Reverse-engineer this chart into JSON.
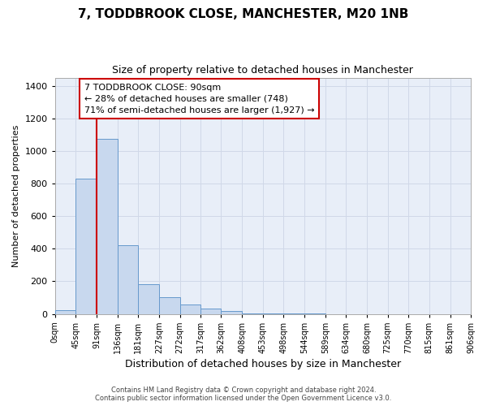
{
  "title_line1": "7, TODDBROOK CLOSE, MANCHESTER, M20 1NB",
  "title_line2": "Size of property relative to detached houses in Manchester",
  "xlabel": "Distribution of detached houses by size in Manchester",
  "ylabel": "Number of detached properties",
  "footer_line1": "Contains HM Land Registry data © Crown copyright and database right 2024.",
  "footer_line2": "Contains public sector information licensed under the Open Government Licence v3.0.",
  "annotation_line1": "7 TODDBROOK CLOSE: 90sqm",
  "annotation_line2": "← 28% of detached houses are smaller (748)",
  "annotation_line3": "71% of semi-detached houses are larger (1,927) →",
  "bin_edges": [
    0,
    45,
    91,
    136,
    181,
    227,
    272,
    317,
    362,
    408,
    453,
    498,
    544,
    589,
    634,
    680,
    725,
    770,
    815,
    861,
    906
  ],
  "bin_heights": [
    25,
    830,
    1075,
    420,
    183,
    102,
    57,
    35,
    18,
    5,
    2,
    1,
    1,
    0,
    0,
    0,
    0,
    0,
    0,
    0
  ],
  "bar_facecolor": "#c8d8ee",
  "bar_edgecolor": "#6699cc",
  "redline_x": 91,
  "redline_color": "#cc0000",
  "annotation_box_edgecolor": "#cc0000",
  "annotation_box_facecolor": "#ffffff",
  "grid_color": "#d0d8e8",
  "background_color": "#ffffff",
  "plot_background": "#e8eef8",
  "ylim": [
    0,
    1450
  ],
  "yticks": [
    0,
    200,
    400,
    600,
    800,
    1000,
    1200,
    1400
  ],
  "xlim": [
    0,
    906
  ],
  "title_fontsize": 11,
  "subtitle_fontsize": 9,
  "ylabel_fontsize": 8,
  "xlabel_fontsize": 9
}
